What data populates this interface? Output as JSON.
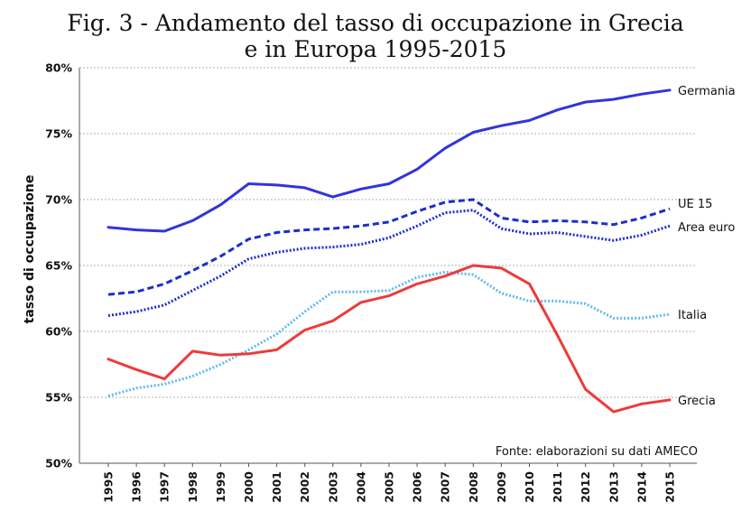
{
  "chart_data": {
    "type": "line",
    "title_line1": "Fig. 3 - Andamento del tasso di occupazione in Grecia",
    "title_line2": "e in Europa 1995-2015",
    "xlabel": "",
    "ylabel": "tasso di occupazione",
    "ylim": [
      50,
      80
    ],
    "yticks": [
      50,
      55,
      60,
      65,
      70,
      75,
      80
    ],
    "ytick_labels": [
      "50%",
      "55%",
      "60%",
      "65%",
      "70%",
      "75%",
      "80%"
    ],
    "categories": [
      "1995",
      "1996",
      "1997",
      "1998",
      "1999",
      "2000",
      "2001",
      "2002",
      "2003",
      "2004",
      "2005",
      "2006",
      "2007",
      "2008",
      "2009",
      "2010",
      "2011",
      "2012",
      "2013",
      "2014",
      "2015"
    ],
    "grid": true,
    "source": "Fonte: elaborazioni su dati AMECO",
    "series": [
      {
        "name": "Germania",
        "color": "#3333dd",
        "style": "solid",
        "values": [
          67.9,
          67.7,
          67.6,
          68.4,
          69.6,
          71.2,
          71.1,
          70.9,
          70.2,
          70.8,
          71.2,
          72.3,
          73.9,
          75.1,
          75.6,
          76.0,
          76.8,
          77.4,
          77.6,
          78.0,
          78.3
        ]
      },
      {
        "name": "UE 15",
        "color": "#1a2ecc",
        "style": "dashed",
        "values": [
          62.8,
          63.0,
          63.6,
          64.6,
          65.7,
          67.0,
          67.5,
          67.7,
          67.8,
          68.0,
          68.3,
          69.1,
          69.8,
          70.0,
          68.6,
          68.3,
          68.4,
          68.3,
          68.1,
          68.6,
          69.3
        ]
      },
      {
        "name": "Area euro",
        "color": "#1a2ecc",
        "style": "dotted",
        "values": [
          61.2,
          61.5,
          62.0,
          63.1,
          64.2,
          65.5,
          66.0,
          66.3,
          66.4,
          66.6,
          67.1,
          68.0,
          69.0,
          69.2,
          67.8,
          67.4,
          67.5,
          67.2,
          66.9,
          67.3,
          68.0
        ]
      },
      {
        "name": "Italia",
        "color": "#66b8ee",
        "style": "dotted",
        "values": [
          55.1,
          55.7,
          56.0,
          56.6,
          57.5,
          58.6,
          59.8,
          61.5,
          63.0,
          63.0,
          63.1,
          64.1,
          64.5,
          64.3,
          62.9,
          62.3,
          62.3,
          62.1,
          61.0,
          61.0,
          61.3
        ]
      },
      {
        "name": "Grecia",
        "color": "#ee3a3a",
        "style": "solid",
        "values": [
          57.9,
          57.1,
          56.4,
          58.5,
          58.2,
          58.3,
          58.6,
          60.1,
          60.8,
          62.2,
          62.7,
          63.6,
          64.2,
          65.0,
          64.8,
          63.6,
          59.7,
          55.6,
          53.9,
          54.5,
          54.8
        ]
      }
    ]
  }
}
